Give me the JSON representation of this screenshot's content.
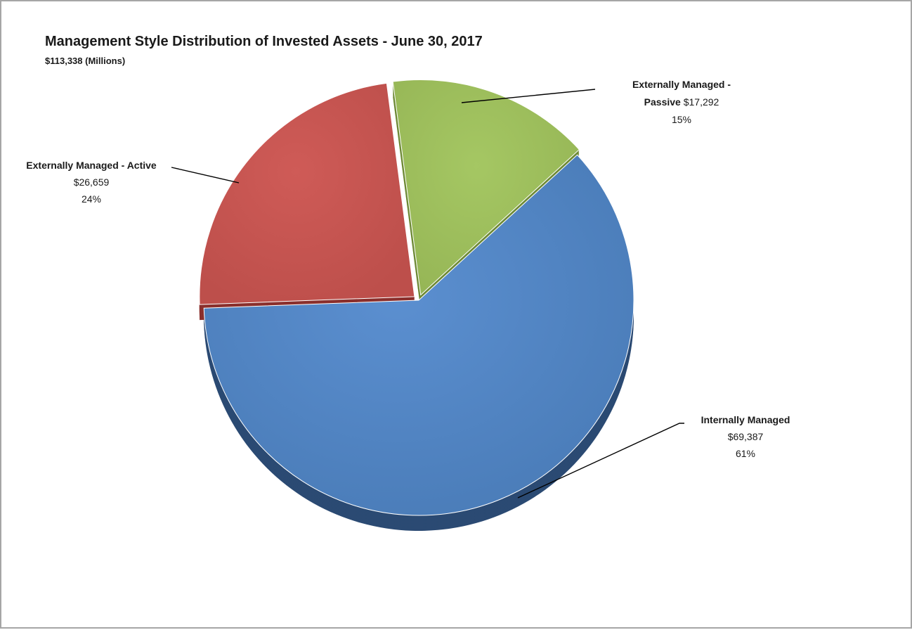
{
  "chart_data": {
    "type": "pie",
    "title": "Management Style Distribution of Invested Assets - June 30, 2017",
    "subtitle": "$113,338 (Millions)",
    "slices": [
      {
        "name": "Internally Managed",
        "value_label": "$69,387",
        "value": 69387,
        "percent_label": "61%",
        "color": "#4f81bd"
      },
      {
        "name": "Externally Managed - Active",
        "value_label": "$26,659",
        "value": 26659,
        "percent_label": "24%",
        "color": "#c0504d"
      },
      {
        "name_line1": "Externally Managed -",
        "name_line2": "Passive",
        "name": "Externally Managed - Passive",
        "value_label": "$17,292",
        "value": 17292,
        "percent_label": "15%",
        "color": "#9bbb59"
      }
    ],
    "style": "3d-exploded"
  }
}
